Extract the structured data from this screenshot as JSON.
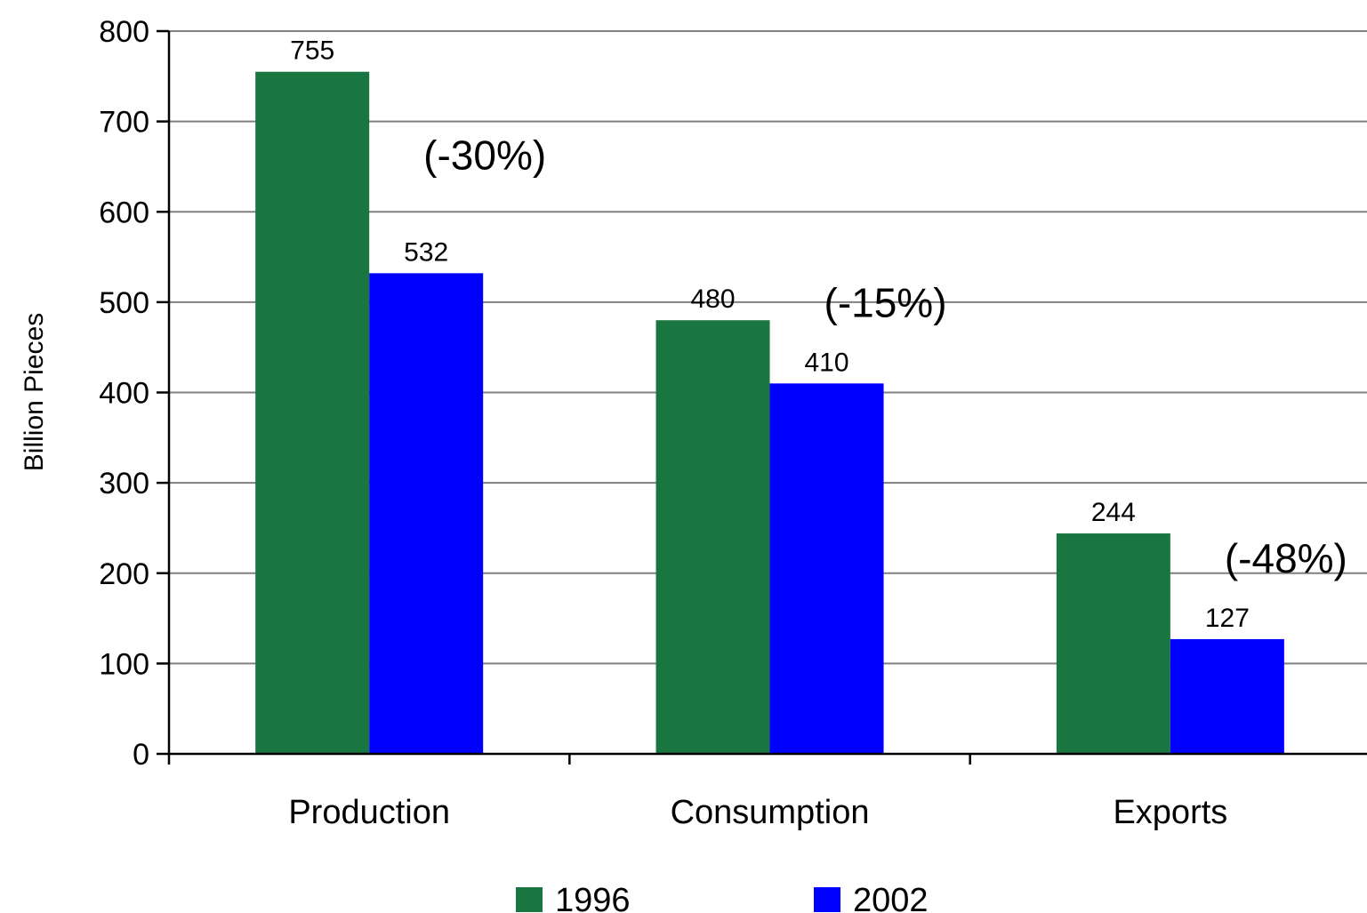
{
  "chart_data": {
    "type": "bar",
    "ylabel": "Billion Pieces",
    "ylim": [
      0,
      800
    ],
    "yticks": [
      0,
      100,
      200,
      300,
      400,
      500,
      600,
      700,
      800
    ],
    "grid": true,
    "legend_position": "bottom",
    "categories": [
      "Production",
      "Consumption",
      "Exports"
    ],
    "series": [
      {
        "name": "1996",
        "color": "#1a7641",
        "values": [
          755,
          480,
          244
        ]
      },
      {
        "name": "2002",
        "color": "#0000ff",
        "values": [
          532,
          410,
          127
        ]
      }
    ],
    "annotations": [
      "(-30%)",
      "(-15%)",
      "(-48%)"
    ]
  }
}
